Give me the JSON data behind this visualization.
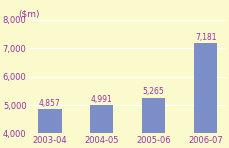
{
  "categories": [
    "2003-04",
    "2004-05",
    "2005-06",
    "2006-07"
  ],
  "values": [
    4857,
    4991,
    5265,
    7181
  ],
  "bar_color": "#7b8ec8",
  "label_color": "#9933aa",
  "axis_label_color": "#9933aa",
  "background_color": "#fafacc",
  "ylabel_text": "($m)",
  "ylim": [
    4000,
    8600
  ],
  "yticks": [
    4000,
    5000,
    6000,
    7000,
    8000
  ],
  "bar_labels": [
    "4,857",
    "4,991",
    "5,265",
    "7,181"
  ],
  "ylabel_fontsize": 6.5,
  "tick_fontsize": 6,
  "bar_label_fontsize": 5.5,
  "grid_color": "#e8e8b0"
}
